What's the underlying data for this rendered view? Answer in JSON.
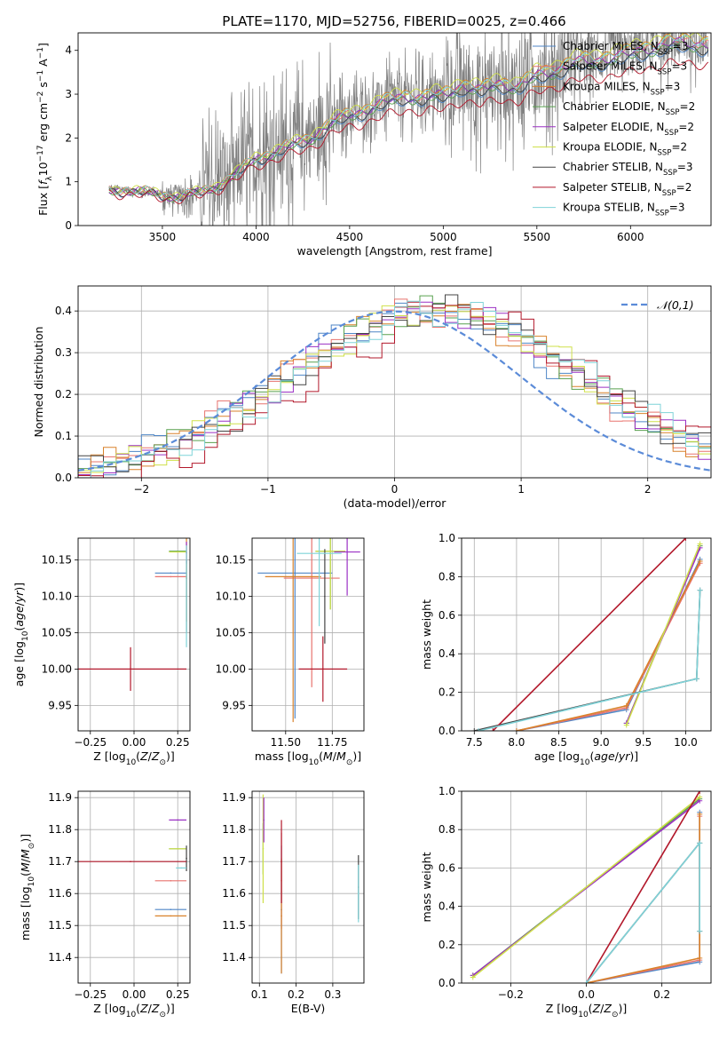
{
  "title": "PLATE=1170, MJD=52756, FIBERID=0025, z=0.466",
  "models": [
    {
      "name": "Chabrier MILES, N_SSP=3",
      "base": "Chabrier MILES, N",
      "sub": "SSP",
      "tail": "=3",
      "color": "#4f86c6"
    },
    {
      "name": "Salpeter MILES, N_SSP=3",
      "base": "Salpeter MILES, N",
      "sub": "SSP",
      "tail": "=3",
      "color": "#e8736e"
    },
    {
      "name": "Kroupa MILES, N_SSP=3",
      "base": "Kroupa MILES, N",
      "sub": "SSP",
      "tail": "=3",
      "color": "#d9822b"
    },
    {
      "name": "Chabrier ELODIE, N_SSP=2",
      "base": "Chabrier ELODIE, N",
      "sub": "SSP",
      "tail": "=2",
      "color": "#59a14f"
    },
    {
      "name": "Salpeter ELODIE, N_SSP=2",
      "base": "Salpeter ELODIE, N",
      "sub": "SSP",
      "tail": "=2",
      "color": "#9b30c4"
    },
    {
      "name": "Kroupa ELODIE, N_SSP=2",
      "base": "Kroupa ELODIE, N",
      "sub": "SSP",
      "tail": "=2",
      "color": "#cfe04a"
    },
    {
      "name": "Chabrier STELIB, N_SSP=3",
      "base": "Chabrier STELIB, N",
      "sub": "SSP",
      "tail": "=3",
      "color": "#444444"
    },
    {
      "name": "Salpeter STELIB, N_SSP=2",
      "base": "Salpeter STELIB, N",
      "sub": "SSP",
      "tail": "=2",
      "color": "#b2182b"
    },
    {
      "name": "Kroupa STELIB, N_SSP=3",
      "base": "Kroupa STELIB, N",
      "sub": "SSP",
      "tail": "=3",
      "color": "#7fd3d8"
    }
  ],
  "chart_data": [
    {
      "id": "spectrum",
      "type": "line",
      "xlabel": "wavelength [Angstrom, rest frame]",
      "ylabel": "Flux [f_λ 10^-17 erg cm^-2 s^-1 A^-1]",
      "xlim": [
        3050,
        6430
      ],
      "ylim": [
        0,
        4.4
      ],
      "xticks": [
        3500,
        4000,
        4500,
        5000,
        5500,
        6000
      ],
      "yticks": [
        0,
        1,
        2,
        3,
        4
      ],
      "legend": "top-right",
      "data_color": "#808080",
      "model_curve": {
        "x": [
          3210,
          3300,
          3400,
          3500,
          3600,
          3700,
          3800,
          3900,
          4000,
          4100,
          4200,
          4300,
          4400,
          4500,
          4600,
          4700,
          4800,
          4900,
          5000,
          5100,
          5200,
          5300,
          5400,
          5500,
          5600,
          5700,
          5800,
          5900,
          6000,
          6100,
          6200
        ],
        "y": [
          0.82,
          0.83,
          0.76,
          0.72,
          0.68,
          0.75,
          0.95,
          1.2,
          1.55,
          1.7,
          1.85,
          2.05,
          2.35,
          2.55,
          2.7,
          2.85,
          3.0,
          2.95,
          3.0,
          3.25,
          3.1,
          3.3,
          3.2,
          3.45,
          3.6,
          3.75,
          3.8,
          3.9,
          3.95,
          4.1,
          4.2
        ]
      },
      "model_scale": [
        0.95,
        1.0,
        1.02,
        0.97,
        0.99,
        1.04,
        0.96,
        0.88,
        1.01
      ]
    },
    {
      "id": "residuals",
      "type": "line",
      "xlabel": "(data-model)/error",
      "ylabel": "Normed distribution",
      "xlim": [
        -2.5,
        2.5
      ],
      "ylim": [
        0,
        0.46
      ],
      "xticks": [
        -2,
        -1,
        0,
        1,
        2
      ],
      "yticks": [
        0.0,
        0.1,
        0.2,
        0.3,
        0.4
      ],
      "grid": true,
      "legend": "top-right",
      "gaussian_label": "𝒩(0,1)",
      "gaussian_color": "#5b8bd8"
    },
    {
      "id": "age-vs-Z",
      "type": "scatter",
      "xlabel": "Z [log10(Z/Z⊙)]",
      "ylabel": "age [log10(age/yr)]",
      "xlim": [
        -0.32,
        0.32
      ],
      "ylim": [
        9.915,
        10.18
      ],
      "xticks": [
        -0.25,
        0.0,
        0.25
      ],
      "yticks": [
        9.95,
        10.0,
        10.05,
        10.1,
        10.15
      ],
      "grid": true,
      "errorbars": [
        {
          "model": 0,
          "x": 0.21,
          "y": 10.132,
          "xerr": 0.09,
          "yerr": 0.0
        },
        {
          "model": 1,
          "x": 0.21,
          "y": 10.127,
          "xerr": 0.09,
          "yerr": 0.0
        },
        {
          "model": 2,
          "x": 0.3,
          "y": 10.125,
          "xerr": 0.0,
          "yerr": 0.06
        },
        {
          "model": 3,
          "x": 0.25,
          "y": 10.162,
          "xerr": 0.05,
          "yerr": 0.0
        },
        {
          "model": 5,
          "x": 0.25,
          "y": 10.161,
          "xerr": 0.05,
          "yerr": 0.0
        },
        {
          "model": 4,
          "x": 0.3,
          "y": 10.16,
          "xerr": 0.0,
          "yerr": 0.015
        },
        {
          "model": 6,
          "x": 0.3,
          "y": 10.1,
          "xerr": 0.0,
          "yerr": 0.05
        },
        {
          "model": 7,
          "x": -0.02,
          "y": 10.0,
          "xerr": 0.32,
          "yerr": 0.03
        },
        {
          "model": 8,
          "x": 0.3,
          "y": 10.1,
          "xerr": 0.0,
          "yerr": 0.07
        }
      ]
    },
    {
      "id": "age-vs-mass",
      "type": "scatter",
      "xlabel": "mass [log10(M/M⊙)]",
      "ylabel": "",
      "xlim": [
        11.32,
        11.92
      ],
      "ylim": [
        9.915,
        10.18
      ],
      "xticks": [
        11.5,
        11.75
      ],
      "yticks": [
        9.95,
        10.0,
        10.05,
        10.1,
        10.15
      ],
      "grid": true,
      "errorbars": [
        {
          "model": 0,
          "x": 11.55,
          "y": 10.132,
          "xerr": 0.2,
          "yerr": 0.2
        },
        {
          "model": 1,
          "x": 11.64,
          "y": 10.125,
          "xerr": 0.15,
          "yerr": 0.15
        },
        {
          "model": 2,
          "x": 11.54,
          "y": 10.127,
          "xerr": 0.15,
          "yerr": 0.2
        },
        {
          "model": 3,
          "x": 11.74,
          "y": 10.162,
          "xerr": 0.08,
          "yerr": 0.08
        },
        {
          "model": 5,
          "x": 11.74,
          "y": 10.162,
          "xerr": 0.08,
          "yerr": 0.08
        },
        {
          "model": 4,
          "x": 11.83,
          "y": 10.161,
          "xerr": 0.07,
          "yerr": 0.06
        },
        {
          "model": 6,
          "x": 11.71,
          "y": 10.1,
          "xerr": 0.0,
          "yerr": 0.065
        },
        {
          "model": 7,
          "x": 11.7,
          "y": 10.0,
          "xerr": 0.13,
          "yerr": 0.045
        },
        {
          "model": 8,
          "x": 11.68,
          "y": 10.159,
          "xerr": 0.12,
          "yerr": 0.1
        }
      ]
    },
    {
      "id": "weight-vs-age",
      "type": "line",
      "xlabel": "age [log10(age/yr)]",
      "ylabel": "mass weight",
      "xlim": [
        7.35,
        10.3
      ],
      "ylim": [
        0,
        1
      ],
      "xticks": [
        7.5,
        8.0,
        8.5,
        9.0,
        9.5,
        10.0
      ],
      "yticks": [
        0.0,
        0.2,
        0.4,
        0.6,
        0.8,
        1.0
      ],
      "grid": true,
      "series": [
        {
          "model": 0,
          "x": [
            8.0,
            9.3,
            10.17
          ],
          "y": [
            0.0,
            0.11,
            0.89
          ]
        },
        {
          "model": 1,
          "x": [
            8.0,
            9.3,
            10.17
          ],
          "y": [
            0.0,
            0.12,
            0.87
          ]
        },
        {
          "model": 2,
          "x": [
            8.0,
            9.3,
            10.17
          ],
          "y": [
            0.0,
            0.13,
            0.88
          ]
        },
        {
          "model": 3,
          "x": [
            9.3,
            10.17
          ],
          "y": [
            0.04,
            0.96
          ]
        },
        {
          "model": 4,
          "x": [
            9.3,
            10.17
          ],
          "y": [
            0.04,
            0.95
          ]
        },
        {
          "model": 5,
          "x": [
            9.3,
            10.17
          ],
          "y": [
            0.03,
            0.97
          ]
        },
        {
          "model": 6,
          "x": [
            7.5,
            10.13,
            10.17
          ],
          "y": [
            0.0,
            0.27,
            0.73
          ]
        },
        {
          "model": 7,
          "x": [
            7.72,
            10.0
          ],
          "y": [
            0.0,
            1.0
          ]
        },
        {
          "model": 8,
          "x": [
            7.55,
            10.13,
            10.17
          ],
          "y": [
            0.0,
            0.27,
            0.73
          ]
        }
      ]
    },
    {
      "id": "mass-vs-Z",
      "type": "scatter",
      "xlabel": "Z [log10(Z/Z⊙)]",
      "ylabel": "mass [log10(M/M⊙)]",
      "xlim": [
        -0.32,
        0.32
      ],
      "ylim": [
        11.32,
        11.92
      ],
      "xticks": [
        -0.25,
        0.0,
        0.25
      ],
      "yticks": [
        11.4,
        11.5,
        11.6,
        11.7,
        11.8,
        11.9
      ],
      "grid": true,
      "errorbars": [
        {
          "model": 0,
          "x": 0.21,
          "y": 11.55,
          "xerr": 0.09,
          "yerr": 0.0
        },
        {
          "model": 1,
          "x": 0.21,
          "y": 11.64,
          "xerr": 0.09,
          "yerr": 0.0
        },
        {
          "model": 2,
          "x": 0.21,
          "y": 11.53,
          "xerr": 0.09,
          "yerr": 0.0
        },
        {
          "model": 3,
          "x": 0.25,
          "y": 11.74,
          "xerr": 0.05,
          "yerr": 0.0
        },
        {
          "model": 5,
          "x": 0.25,
          "y": 11.74,
          "xerr": 0.05,
          "yerr": 0.0
        },
        {
          "model": 4,
          "x": 0.25,
          "y": 11.83,
          "xerr": 0.05,
          "yerr": 0.0
        },
        {
          "model": 6,
          "x": 0.3,
          "y": 11.71,
          "xerr": 0.0,
          "yerr": 0.04
        },
        {
          "model": 7,
          "x": -0.02,
          "y": 11.7,
          "xerr": 0.32,
          "yerr": 0.0
        },
        {
          "model": 8,
          "x": 0.27,
          "y": 11.68,
          "xerr": 0.03,
          "yerr": 0.0
        }
      ]
    },
    {
      "id": "mass-vs-EBV",
      "type": "scatter",
      "xlabel": "E(B-V)",
      "ylabel": "",
      "xlim": [
        0.08,
        0.385
      ],
      "ylim": [
        11.32,
        11.92
      ],
      "xticks": [
        0.1,
        0.2,
        0.3
      ],
      "yticks": [
        11.4,
        11.5,
        11.6,
        11.7,
        11.8,
        11.9
      ],
      "grid": true,
      "errorbars": [
        {
          "model": 0,
          "x": 0.16,
          "y": 11.55,
          "xerr": 0.0,
          "yerr": 0.2
        },
        {
          "model": 1,
          "x": 0.16,
          "y": 11.64,
          "xerr": 0.0,
          "yerr": 0.15
        },
        {
          "model": 2,
          "x": 0.16,
          "y": 11.53,
          "xerr": 0.0,
          "yerr": 0.18
        },
        {
          "model": 3,
          "x": 0.11,
          "y": 11.74,
          "xerr": 0.0,
          "yerr": 0.08
        },
        {
          "model": 5,
          "x": 0.11,
          "y": 11.74,
          "xerr": 0.0,
          "yerr": 0.17
        },
        {
          "model": 4,
          "x": 0.112,
          "y": 11.83,
          "xerr": 0.0,
          "yerr": 0.07
        },
        {
          "model": 6,
          "x": 0.37,
          "y": 11.62,
          "xerr": 0.0,
          "yerr": 0.1
        },
        {
          "model": 7,
          "x": 0.16,
          "y": 11.7,
          "xerr": 0.0,
          "yerr": 0.13
        },
        {
          "model": 8,
          "x": 0.37,
          "y": 11.6,
          "xerr": 0.0,
          "yerr": 0.09
        }
      ]
    },
    {
      "id": "weight-vs-Z",
      "type": "line",
      "xlabel": "Z [log10(Z/Z⊙)]",
      "ylabel": "mass weight",
      "xlim": [
        -0.33,
        0.33
      ],
      "ylim": [
        0,
        1
      ],
      "xticks": [
        -0.2,
        0.0,
        0.2
      ],
      "yticks": [
        0.0,
        0.2,
        0.4,
        0.6,
        0.8,
        1.0
      ],
      "grid": true,
      "series": [
        {
          "model": 0,
          "x": [
            0.0,
            0.3,
            0.3
          ],
          "y": [
            0.0,
            0.11,
            0.89
          ]
        },
        {
          "model": 1,
          "x": [
            0.0,
            0.3,
            0.3
          ],
          "y": [
            0.0,
            0.12,
            0.87
          ]
        },
        {
          "model": 2,
          "x": [
            0.0,
            0.3,
            0.3
          ],
          "y": [
            0.0,
            0.13,
            0.88
          ]
        },
        {
          "model": 3,
          "x": [
            -0.3,
            0.3
          ],
          "y": [
            0.04,
            0.96
          ]
        },
        {
          "model": 4,
          "x": [
            -0.3,
            0.3
          ],
          "y": [
            0.04,
            0.95
          ]
        },
        {
          "model": 5,
          "x": [
            -0.3,
            0.3
          ],
          "y": [
            0.03,
            0.97
          ]
        },
        {
          "model": 6,
          "x": [
            0.0,
            0.3,
            0.3
          ],
          "y": [
            0.0,
            0.73,
            0.27
          ]
        },
        {
          "model": 7,
          "x": [
            0.0,
            0.3
          ],
          "y": [
            0.0,
            1.0
          ]
        },
        {
          "model": 8,
          "x": [
            0.0,
            0.3,
            0.3
          ],
          "y": [
            0.0,
            0.73,
            0.27
          ]
        }
      ]
    }
  ]
}
